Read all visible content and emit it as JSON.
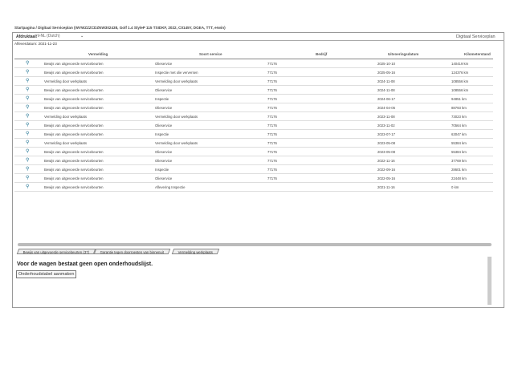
{
  "breadcrumb": "Startpagina / Digitaal Serviceplan (WVWZZZCDZNW302438, Golf 1.4 StyleP 115 TSIDKF, 2022, C0145Y, DGEA, TTT, erwin)",
  "toolbar": {
    "language_label": "Afdruktaal:",
    "language_value": "nl-NL (Dutch)",
    "app_title": "Digitaal Serviceplan"
  },
  "delivery_date": "Afleverdatum: 2021-11-23",
  "columns": [
    "Vermelding",
    "Soort service",
    "Bedrijf",
    "Uitvoeringsdatum",
    "Kilometerstand"
  ],
  "rows": [
    {
      "icon": "magnifier-icon",
      "vermelding": "Bewijs van uitgevoerde servicebeurten",
      "soort": "Olieservice",
      "bedrijf": "77176",
      "datum": "2025-10-10",
      "km": "140419 km"
    },
    {
      "icon": "magnifier-icon",
      "vermelding": "Bewijs van uitgevoerde servicebeurten",
      "soort": "Inspectie met olie verversen",
      "bedrijf": "77176",
      "datum": "2025-05-16",
      "km": "124376 km"
    },
    {
      "icon": "magnifier-icon",
      "vermelding": "Vermelding door werkplaats",
      "soort": "Vermelding door werkplaats",
      "bedrijf": "77176",
      "datum": "2024-11-08",
      "km": "108556 km"
    },
    {
      "icon": "magnifier-icon",
      "vermelding": "Bewijs van uitgevoerde servicebeurten",
      "soort": "Olieservice",
      "bedrijf": "77176",
      "datum": "2024-11-08",
      "km": "108556 km"
    },
    {
      "icon": "magnifier-icon",
      "vermelding": "Bewijs van uitgevoerde servicebeurten",
      "soort": "Inspectie",
      "bedrijf": "77176",
      "datum": "2024-06-17",
      "km": "94851 km"
    },
    {
      "icon": "magnifier-icon",
      "vermelding": "Bewijs van uitgevoerde servicebeurten",
      "soort": "Olieservice",
      "bedrijf": "77176",
      "datum": "2024-04-05",
      "km": "88793 km"
    },
    {
      "icon": "magnifier-icon",
      "vermelding": "Vermelding door werkplaats",
      "soort": "Vermelding door werkplaats",
      "bedrijf": "77176",
      "datum": "2023-11-08",
      "km": "73023 km"
    },
    {
      "icon": "magnifier-icon",
      "vermelding": "Bewijs van uitgevoerde servicebeurten",
      "soort": "Olieservice",
      "bedrijf": "77176",
      "datum": "2023-11-02",
      "km": "70564 km"
    },
    {
      "icon": "magnifier-icon",
      "vermelding": "Bewijs van uitgevoerde servicebeurten",
      "soort": "Inspectie",
      "bedrijf": "77176",
      "datum": "2023-07-17",
      "km": "63047 km"
    },
    {
      "icon": "magnifier-icon",
      "vermelding": "Vermelding door werkplaats",
      "soort": "Vermelding door werkplaats",
      "bedrijf": "77176",
      "datum": "2023-05-08",
      "km": "55384 km"
    },
    {
      "icon": "magnifier-icon",
      "vermelding": "Bewijs van uitgevoerde servicebeurten",
      "soort": "Olieservice",
      "bedrijf": "77176",
      "datum": "2023-05-08",
      "km": "55384 km"
    },
    {
      "icon": "magnifier-icon",
      "vermelding": "Bewijs van uitgevoerde servicebeurten",
      "soort": "Olieservice",
      "bedrijf": "77176",
      "datum": "2022-11-16",
      "km": "37769 km"
    },
    {
      "icon": "magnifier-icon",
      "vermelding": "Bewijs van uitgevoerde servicebeurten",
      "soort": "Inspectie",
      "bedrijf": "77176",
      "datum": "2022-09-16",
      "km": "28601 km"
    },
    {
      "icon": "magnifier-icon",
      "vermelding": "Bewijs van uitgevoerde servicebeurten",
      "soort": "Olieservice",
      "bedrijf": "77176",
      "datum": "2022-05-16",
      "km": "22448 km"
    },
    {
      "icon": "magnifier-icon",
      "vermelding": "Bewijs van uitgevoerde servicebeurten",
      "soort": "Aflevering Inspectie",
      "bedrijf": "",
      "datum": "2021-11-16",
      "km": "0 km"
    }
  ],
  "tabs": [
    "Bewijs van uitgevoerde servicebeurten (37)",
    "Garantie tegen doorroesten van binnenuit",
    "Vermelding werkplaats"
  ],
  "maintenance": {
    "message": "Voor de wagen bestaat geen open onderhoudslijst.",
    "button": "Onderhoudstabel aanmaken"
  }
}
